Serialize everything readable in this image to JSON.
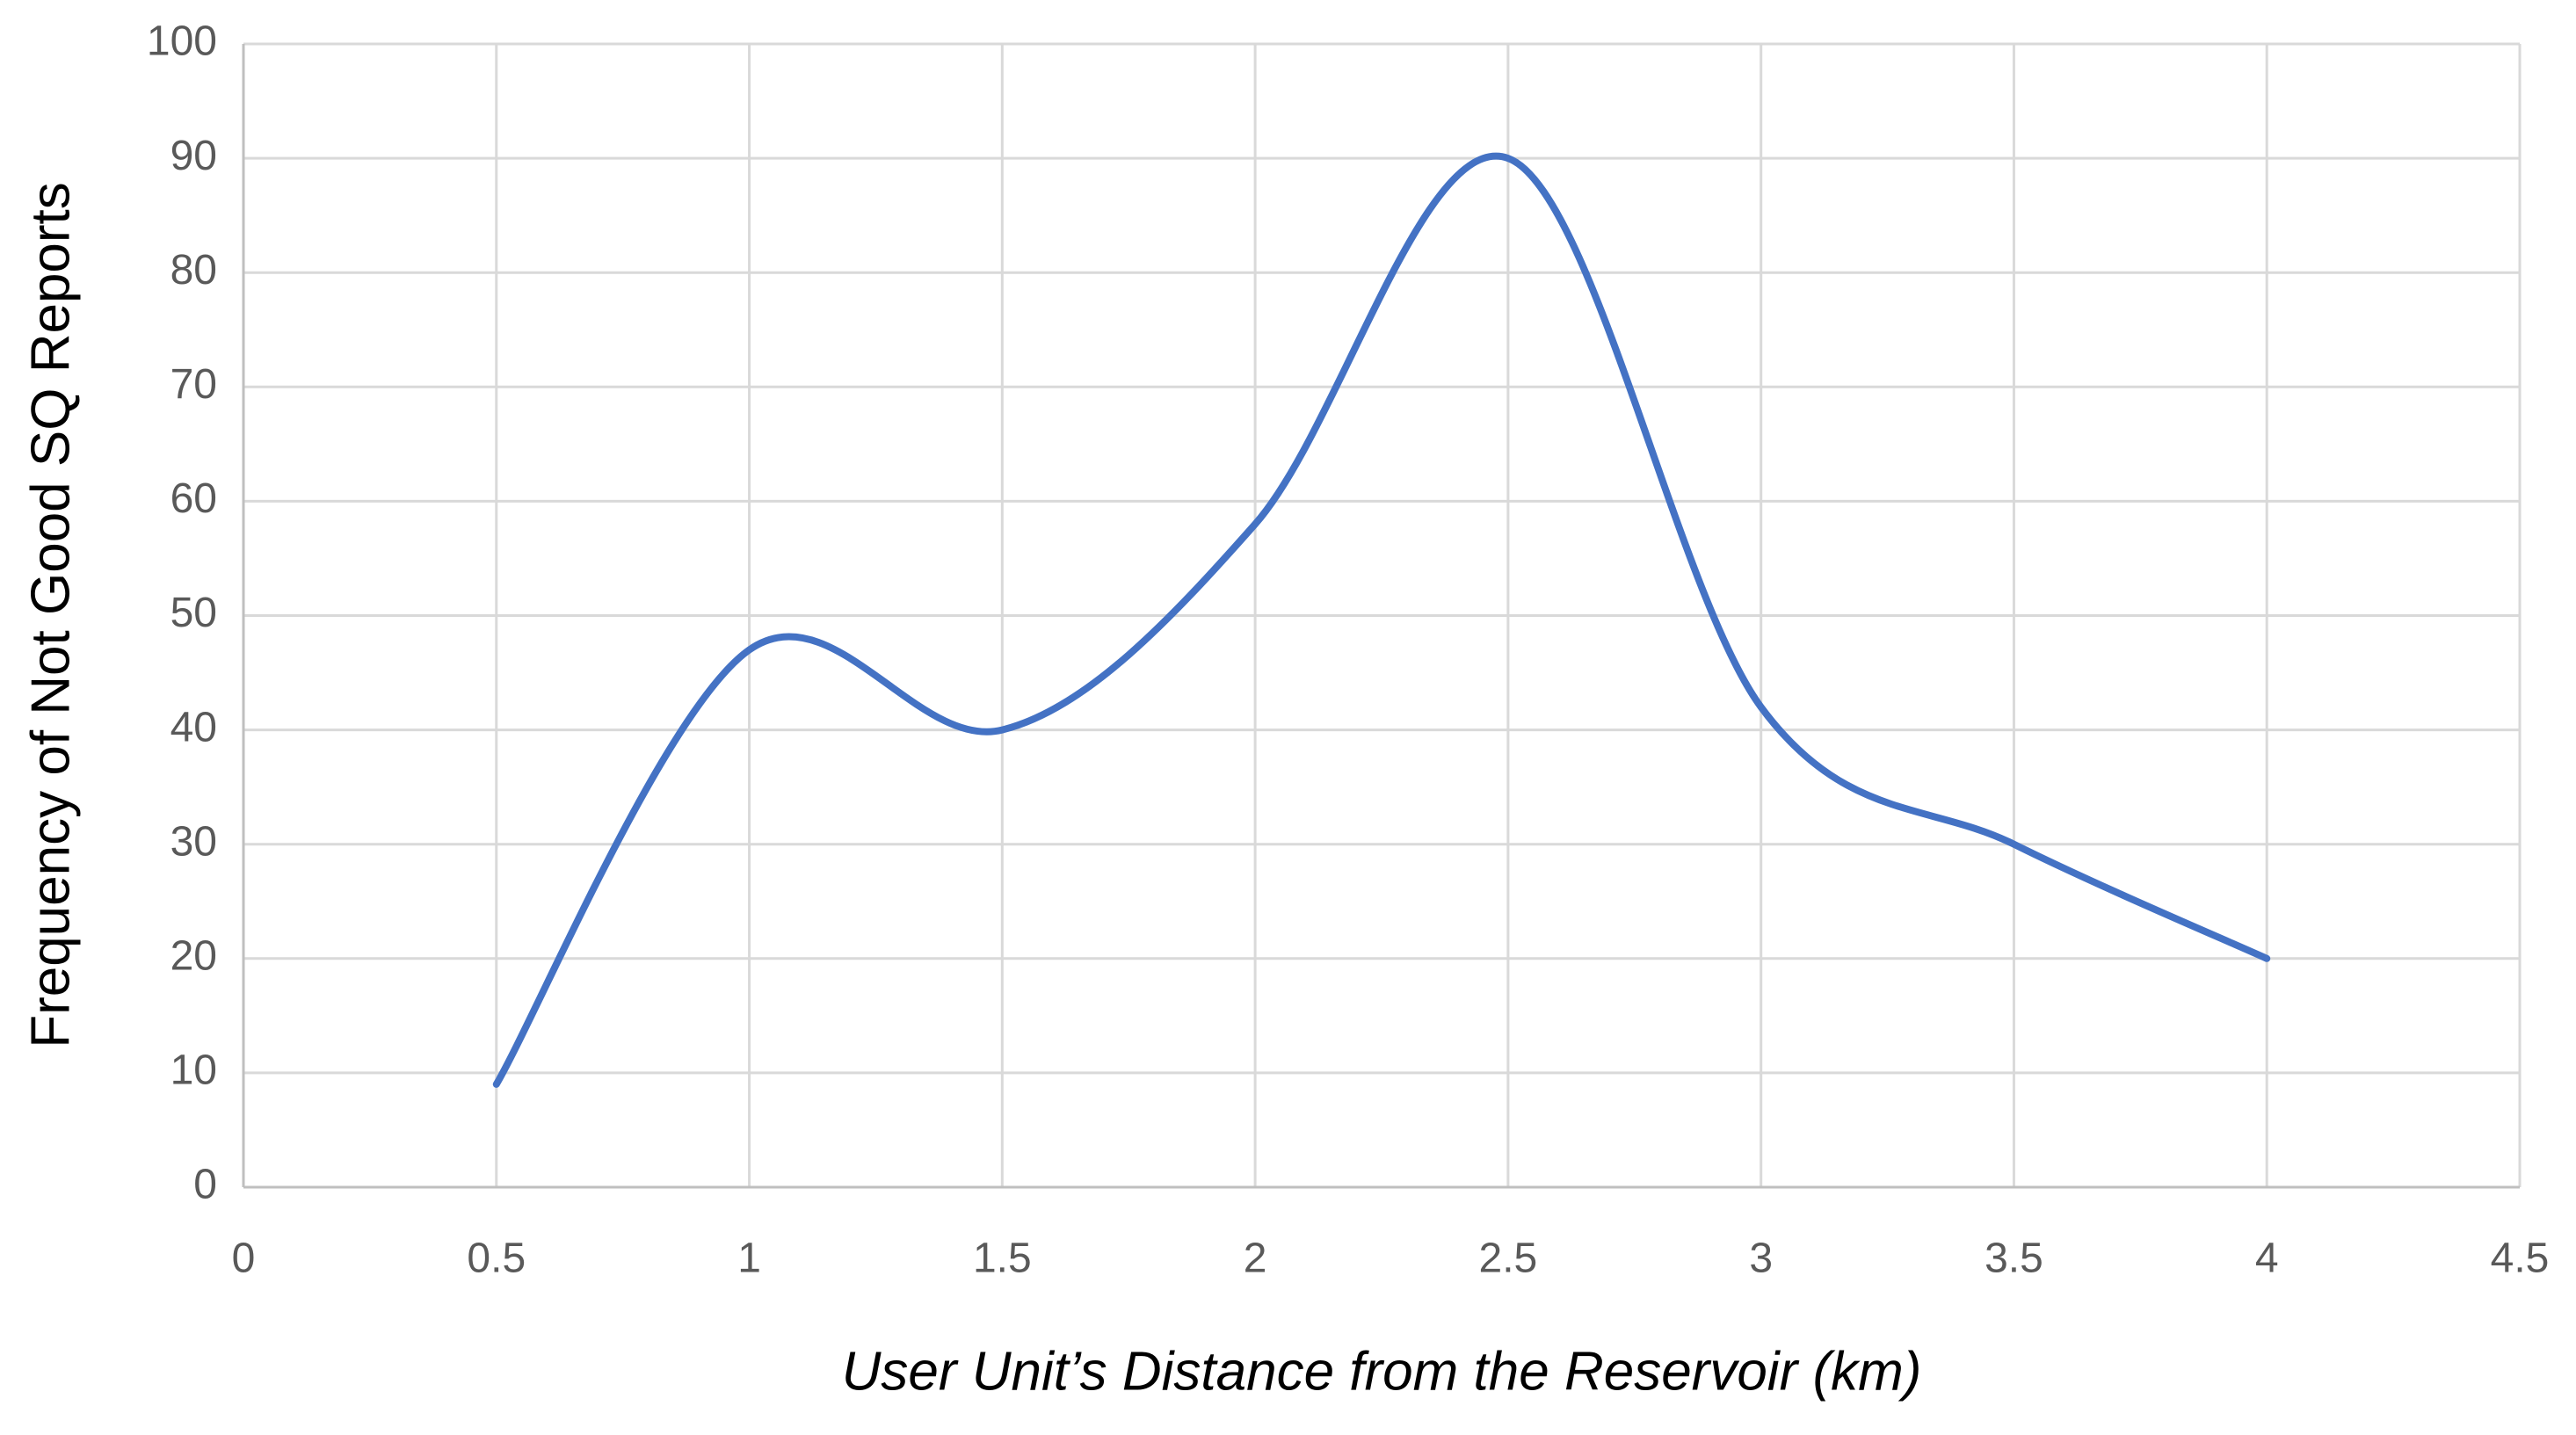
{
  "chart_data": {
    "type": "line",
    "x_label": "User Unit’s Distance from the Reservoir (km)",
    "y_label": "Frequency of Not Good SQ Reports",
    "x": [
      0.5,
      1,
      1.5,
      2,
      2.5,
      3,
      3.5,
      4
    ],
    "series": [
      {
        "color": "#4472c4",
        "values": [
          9,
          47,
          40,
          58,
          90,
          42,
          30,
          20
        ]
      }
    ],
    "smooth": true,
    "xlim": [
      0,
      4.5
    ],
    "xticks": [
      0,
      0.5,
      1,
      1.5,
      2,
      2.5,
      3,
      3.5,
      4,
      4.5
    ],
    "ylim": [
      0,
      100
    ],
    "yticks": [
      0,
      10,
      20,
      30,
      40,
      50,
      60,
      70,
      80,
      90,
      100
    ],
    "grid": true
  }
}
